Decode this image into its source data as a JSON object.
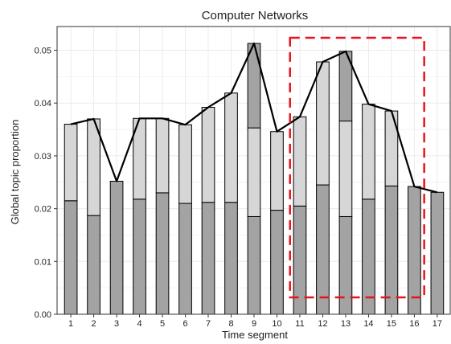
{
  "chart_data": {
    "type": "bar",
    "title": "Computer Networks",
    "xlabel": "Time segment",
    "ylabel": "Global topic proportion",
    "ylim": [
      0,
      0.0545
    ],
    "yticks": [
      0.0,
      0.01,
      0.02,
      0.03,
      0.04,
      0.05
    ],
    "ytick_labels": [
      "0.00",
      "0.01",
      "0.02",
      "0.03",
      "0.04",
      "0.05"
    ],
    "categories": [
      "1",
      "2",
      "3",
      "4",
      "5",
      "6",
      "7",
      "8",
      "9",
      "10",
      "11",
      "12",
      "13",
      "14",
      "15",
      "16",
      "17"
    ],
    "stack_segments": [
      [
        0.0215,
        0.036
      ],
      [
        0.0187,
        0.037
      ],
      [
        0.0252
      ],
      [
        0.0218,
        0.0371
      ],
      [
        0.023,
        0.0371
      ],
      [
        0.021,
        0.0359
      ],
      [
        0.0212,
        0.0392
      ],
      [
        0.0212,
        0.0419
      ],
      [
        0.0185,
        0.0353,
        0.0513
      ],
      [
        0.0197,
        0.0346
      ],
      [
        0.0205,
        0.0374
      ],
      [
        0.0245,
        0.0478
      ],
      [
        0.0185,
        0.0366,
        0.0498
      ],
      [
        0.0218,
        0.0398
      ],
      [
        0.0243,
        0.0385
      ],
      [
        0.0242
      ],
      [
        0.0231
      ]
    ],
    "totals": [
      0.036,
      0.037,
      0.0252,
      0.0371,
      0.0371,
      0.0359,
      0.0392,
      0.0419,
      0.0513,
      0.0346,
      0.0374,
      0.0478,
      0.0498,
      0.0398,
      0.0385,
      0.0242,
      0.0231
    ],
    "line": {
      "x": [
        1,
        2,
        3,
        4,
        5,
        6,
        7,
        8,
        9,
        10,
        11,
        12,
        13,
        14,
        15,
        16,
        17
      ],
      "y": [
        0.036,
        0.037,
        0.0252,
        0.0371,
        0.0371,
        0.0359,
        0.0392,
        0.0419,
        0.0513,
        0.0346,
        0.0374,
        0.0478,
        0.0498,
        0.0398,
        0.0385,
        0.0242,
        0.0231
      ]
    },
    "highlight": {
      "from_category": "11",
      "to_category": "16",
      "color": "#e8141b"
    },
    "colors": {
      "bar_dark": "#a3a3a3",
      "bar_light": "#d6d6d6",
      "bar_edge": "#000000",
      "line": "#000000",
      "grid": "#ebebeb"
    },
    "grid": true
  }
}
